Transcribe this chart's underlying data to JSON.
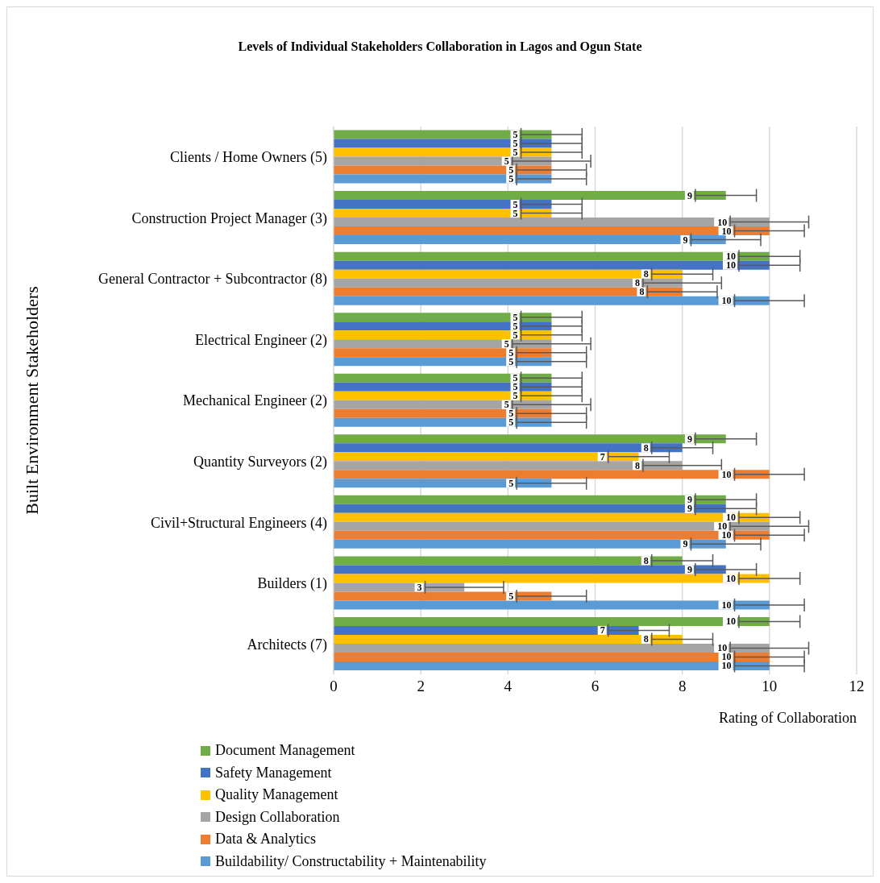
{
  "chart_data": {
    "type": "bar",
    "orientation": "horizontal",
    "title": "Levels of Individual Stakeholders Collaboration in Lagos and Ogun State",
    "xlabel": "Rating of Collaboration",
    "ylabel": "Built Environment Stakeholders",
    "categories": [
      "Clients / Home Owners (5)",
      "Construction Project Manager (3)",
      "General Contractor + Subcontractor (8)",
      "Electrical Engineer (2)",
      "Mechanical Engineer (2)",
      "Quantity Surveyors (2)",
      "Civil+Structural Engineers (4)",
      "Builders (1)",
      "Architects (7)"
    ],
    "series": [
      {
        "name": "Document Management",
        "color": "#70ad47",
        "values": [
          5,
          9,
          10,
          5,
          5,
          9,
          9,
          8,
          10
        ],
        "errors": [
          0.7,
          0.7,
          0.7,
          0.7,
          0.7,
          0.7,
          0.7,
          0.7,
          0.7
        ]
      },
      {
        "name": "Safety Management",
        "color": "#4472c4",
        "values": [
          5,
          5,
          10,
          5,
          5,
          8,
          9,
          9,
          7
        ],
        "errors": [
          0.7,
          0.7,
          0.7,
          0.7,
          0.7,
          0.7,
          0.7,
          0.7,
          0.7
        ]
      },
      {
        "name": "Quality Management",
        "color": "#ffc000",
        "values": [
          5,
          5,
          8,
          5,
          5,
          7,
          10,
          10,
          8
        ],
        "errors": [
          0.7,
          0.7,
          0.7,
          0.7,
          0.7,
          0.7,
          0.7,
          0.7,
          0.7
        ]
      },
      {
        "name": "Design Collaboration",
        "color": "#a5a5a5",
        "values": [
          5,
          10,
          8,
          5,
          5,
          8,
          10,
          3,
          10
        ],
        "errors": [
          0.9,
          0.9,
          0.9,
          0.9,
          0.9,
          0.9,
          0.9,
          0.9,
          0.9
        ]
      },
      {
        "name": "Data & Analytics",
        "color": "#ed7d31",
        "values": [
          5,
          10,
          8,
          5,
          5,
          10,
          10,
          5,
          10
        ],
        "errors": [
          0.8,
          0.8,
          0.8,
          0.8,
          0.8,
          0.8,
          0.8,
          0.8,
          0.8
        ]
      },
      {
        "name": "Buildability/ Constructability + Maintenability",
        "color": "#5b9bd5",
        "values": [
          5,
          9,
          10,
          5,
          5,
          5,
          9,
          10,
          10
        ],
        "errors": [
          0.8,
          0.8,
          0.8,
          0.8,
          0.8,
          0.8,
          0.8,
          0.8,
          0.8
        ]
      }
    ],
    "xlim": [
      0,
      12
    ],
    "xticks": [
      0,
      2,
      4,
      6,
      8,
      10,
      12
    ],
    "grid": "x",
    "legend": "bottom left",
    "data_labels": true
  }
}
